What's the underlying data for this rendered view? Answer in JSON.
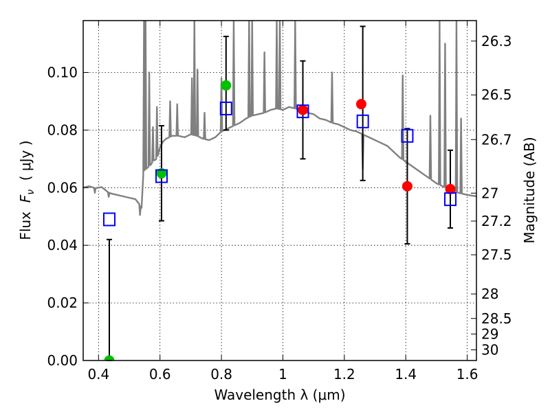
{
  "chart_data": {
    "type": "scatter",
    "xlabel": "Wavelength  λ (μm)",
    "ylabel": "Flux  F_ν  ( μJy )",
    "ylabel_parts": {
      "prefix": "Flux  ",
      "symbol": "F",
      "subscript": "ν",
      "suffix": "  ( μJy )"
    },
    "y2label": "Magnitude (AB)",
    "xlim": [
      0.35,
      1.63
    ],
    "ylim": [
      0.0,
      0.118
    ],
    "grid": true,
    "x_ticks": [
      0.4,
      0.6,
      0.8,
      1.0,
      1.2,
      1.4,
      1.6
    ],
    "x_tick_labels": [
      "0.4",
      "0.6",
      "0.8",
      "1",
      "1.2",
      "1.4",
      "1.6"
    ],
    "y_ticks": [
      0.0,
      0.02,
      0.04,
      0.06,
      0.08,
      0.1
    ],
    "y_tick_labels": [
      "0.00",
      "0.02",
      "0.04",
      "0.06",
      "0.08",
      "0.10"
    ],
    "y2_ticks": [
      {
        "label": "26.3",
        "flux": 0.1109
      },
      {
        "label": "26.5",
        "flux": 0.0922
      },
      {
        "label": "26.7",
        "flux": 0.0767
      },
      {
        "label": "27",
        "flux": 0.0581
      },
      {
        "label": "27.2",
        "flux": 0.0484
      },
      {
        "label": "27.5",
        "flux": 0.0367
      },
      {
        "label": "28",
        "flux": 0.0231
      },
      {
        "label": "28.5",
        "flux": 0.0146
      },
      {
        "label": "29",
        "flux": 0.0092
      },
      {
        "label": "30",
        "flux": 0.0037
      }
    ],
    "model_spectrum": {
      "color": "#808080",
      "x": [
        0.35,
        0.37,
        0.39,
        0.41,
        0.43,
        0.44,
        0.46,
        0.48,
        0.5,
        0.52,
        0.535,
        0.54,
        0.545,
        0.55,
        0.56,
        0.57,
        0.58,
        0.59,
        0.6,
        0.61,
        0.62,
        0.64,
        0.66,
        0.68,
        0.7,
        0.72,
        0.74,
        0.76,
        0.78,
        0.8,
        0.82,
        0.84,
        0.86,
        0.88,
        0.9,
        0.92,
        0.94,
        0.96,
        0.98,
        1.0,
        1.02,
        1.04,
        1.06,
        1.08,
        1.1,
        1.12,
        1.14,
        1.16,
        1.18,
        1.2,
        1.22,
        1.24,
        1.26,
        1.28,
        1.3,
        1.32,
        1.34,
        1.36,
        1.38,
        1.4,
        1.42,
        1.44,
        1.46,
        1.48,
        1.5,
        1.52,
        1.54,
        1.56,
        1.58,
        1.6,
        1.63
      ],
      "y": [
        0.06,
        0.0605,
        0.0598,
        0.0602,
        0.0585,
        0.058,
        0.0575,
        0.057,
        0.0565,
        0.056,
        0.054,
        0.053,
        0.064,
        0.066,
        0.067,
        0.068,
        0.0695,
        0.07,
        0.074,
        0.076,
        0.077,
        0.078,
        0.078,
        0.0775,
        0.0785,
        0.078,
        0.077,
        0.0765,
        0.0775,
        0.0795,
        0.0805,
        0.0815,
        0.0825,
        0.084,
        0.085,
        0.0855,
        0.086,
        0.087,
        0.0875,
        0.087,
        0.088,
        0.0875,
        0.087,
        0.086,
        0.0855,
        0.084,
        0.0835,
        0.0825,
        0.082,
        0.081,
        0.08,
        0.0795,
        0.0785,
        0.0775,
        0.0765,
        0.0755,
        0.0745,
        0.0725,
        0.0705,
        0.069,
        0.0675,
        0.066,
        0.0645,
        0.063,
        0.0615,
        0.0605,
        0.0595,
        0.0585,
        0.058,
        0.0575,
        0.057
      ],
      "emission_lines": [
        {
          "x": 0.548,
          "peak": 0.118
        },
        {
          "x": 0.553,
          "peak": 0.118
        },
        {
          "x": 0.565,
          "peak": 0.1
        },
        {
          "x": 0.577,
          "peak": 0.081
        },
        {
          "x": 0.59,
          "peak": 0.088
        },
        {
          "x": 0.633,
          "peak": 0.09
        },
        {
          "x": 0.656,
          "peak": 0.089
        },
        {
          "x": 0.704,
          "peak": 0.098
        },
        {
          "x": 0.712,
          "peak": 0.118
        },
        {
          "x": 0.722,
          "peak": 0.101
        },
        {
          "x": 0.745,
          "peak": 0.086
        },
        {
          "x": 0.8,
          "peak": 0.098
        },
        {
          "x": 0.84,
          "peak": 0.118
        },
        {
          "x": 0.89,
          "peak": 0.118
        },
        {
          "x": 0.9,
          "peak": 0.118
        },
        {
          "x": 0.94,
          "peak": 0.107
        },
        {
          "x": 0.98,
          "peak": 0.118
        },
        {
          "x": 0.99,
          "peak": 0.118
        },
        {
          "x": 1.04,
          "peak": 0.118
        },
        {
          "x": 1.16,
          "peak": 0.1
        },
        {
          "x": 1.39,
          "peak": 0.099
        },
        {
          "x": 1.48,
          "peak": 0.085
        },
        {
          "x": 1.51,
          "peak": 0.118
        },
        {
          "x": 1.528,
          "peak": 0.11
        },
        {
          "x": 1.565,
          "peak": 0.118
        },
        {
          "x": 1.58,
          "peak": 0.084
        }
      ],
      "absorption_lines": [
        {
          "x": 0.388,
          "depth": 0.0582
        },
        {
          "x": 0.433,
          "depth": 0.0568
        },
        {
          "x": 0.535,
          "depth": 0.0505
        },
        {
          "x": 1.26,
          "depth": 0.0665
        }
      ]
    },
    "series": [
      {
        "marker": "circle",
        "color": "#00c000",
        "points": [
          {
            "x": 0.435,
            "y": 0.0
          },
          {
            "x": 0.605,
            "y": 0.065
          },
          {
            "x": 0.815,
            "y": 0.0955
          }
        ]
      },
      {
        "marker": "circle",
        "color": "#ff0000",
        "points": [
          {
            "x": 1.065,
            "y": 0.087
          },
          {
            "x": 1.255,
            "y": 0.089
          },
          {
            "x": 1.405,
            "y": 0.0605
          },
          {
            "x": 1.545,
            "y": 0.0595
          }
        ]
      },
      {
        "marker": "open-square",
        "color": "#0000ff",
        "points": [
          {
            "x": 0.435,
            "y": 0.049
          },
          {
            "x": 0.605,
            "y": 0.064
          },
          {
            "x": 0.815,
            "y": 0.0875
          },
          {
            "x": 1.065,
            "y": 0.0865
          },
          {
            "x": 1.26,
            "y": 0.083
          },
          {
            "x": 1.405,
            "y": 0.078
          },
          {
            "x": 1.545,
            "y": 0.056
          }
        ]
      }
    ],
    "error_bars": [
      {
        "x": 0.435,
        "low": 0.0,
        "high": 0.042
      },
      {
        "x": 0.605,
        "low": 0.0485,
        "high": 0.0815
      },
      {
        "x": 0.815,
        "low": 0.08,
        "high": 0.1125
      },
      {
        "x": 1.065,
        "low": 0.07,
        "high": 0.104
      },
      {
        "x": 1.26,
        "low": 0.0625,
        "high": 0.116
      },
      {
        "x": 1.405,
        "low": 0.0405,
        "high": 0.0805
      },
      {
        "x": 1.545,
        "low": 0.046,
        "high": 0.073
      }
    ]
  }
}
